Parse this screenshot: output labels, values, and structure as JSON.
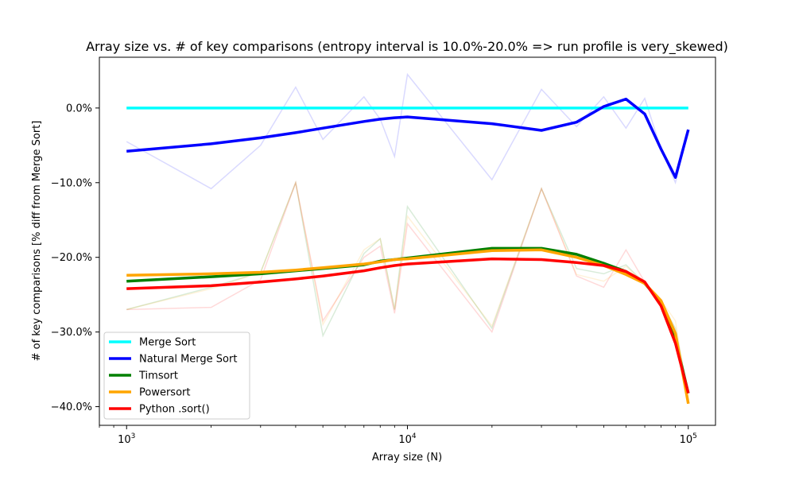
{
  "chart_data": {
    "type": "line",
    "title": "Array size vs. # of key comparisons (entropy interval is 10.0%-20.0% => run profile is very_skewed)",
    "xlabel": "Array size (N)",
    "ylabel": "# of key comparisons [% diff from Merge Sort]",
    "xscale": "log",
    "xlim": [
      800,
      125000
    ],
    "ylim": [
      -42.5,
      6.8
    ],
    "x_ticks": [
      {
        "value": 1000,
        "base": "10",
        "exp": "3"
      },
      {
        "value": 10000,
        "base": "10",
        "exp": "4"
      },
      {
        "value": 100000,
        "base": "10",
        "exp": "5"
      }
    ],
    "y_ticks": [
      {
        "value": 0,
        "label": "0.0%"
      },
      {
        "value": -10,
        "label": "−10.0%"
      },
      {
        "value": -20,
        "label": "−20.0%"
      },
      {
        "value": -30,
        "label": "−30.0%"
      },
      {
        "value": -40,
        "label": "−40.0%"
      }
    ],
    "grid": false,
    "legend_position": "lower-left",
    "x": [
      1000,
      2000,
      3000,
      4000,
      5000,
      7000,
      8000,
      9000,
      10000,
      20000,
      30000,
      40000,
      50000,
      60000,
      70000,
      80000,
      90000,
      100000
    ],
    "series": [
      {
        "name": "Merge Sort",
        "color": "#00ffff",
        "values": [
          0,
          0,
          0,
          0,
          0,
          0,
          0,
          0,
          0,
          0,
          0,
          0,
          0,
          0,
          0,
          0,
          0,
          0
        ],
        "raw": [
          0,
          0,
          0,
          0,
          0,
          0,
          0,
          0,
          0,
          0,
          0,
          0,
          0,
          0,
          0,
          0,
          0,
          0
        ]
      },
      {
        "name": "Natural Merge Sort",
        "color": "#0000ff",
        "values": [
          -5.8,
          -4.8,
          -4.0,
          -3.3,
          -2.7,
          -1.8,
          -1.5,
          -1.3,
          -1.2,
          -2.1,
          -3.0,
          -1.9,
          0.2,
          1.2,
          -0.8,
          -5.5,
          -9.3,
          -2.9
        ],
        "raw": [
          -4.5,
          -10.8,
          -5.0,
          2.8,
          -4.2,
          1.5,
          -1.5,
          -6.5,
          4.5,
          -9.6,
          2.5,
          -2.5,
          1.5,
          -2.7,
          1.3,
          -5.5,
          -10.0,
          -2.9
        ]
      },
      {
        "name": "Timsort",
        "color": "#008000",
        "values": [
          -23.2,
          -22.6,
          -22.2,
          -21.8,
          -21.5,
          -21.0,
          -20.5,
          -20.3,
          -20.1,
          -18.8,
          -18.8,
          -19.6,
          -20.8,
          -21.9,
          -23.5,
          -26.0,
          -31.0,
          -38.2
        ],
        "raw": [
          -27.0,
          -24.0,
          -22.0,
          -10.0,
          -30.5,
          -19.5,
          -17.5,
          -27.0,
          -13.2,
          -29.5,
          -10.8,
          -21.5,
          -22.2,
          -21.0,
          -23.5,
          -26.0,
          -29.5,
          -38.2
        ]
      },
      {
        "name": "Powersort",
        "color": "#ffa500",
        "values": [
          -22.4,
          -22.2,
          -22.0,
          -21.7,
          -21.4,
          -20.9,
          -20.6,
          -20.3,
          -20.2,
          -19.1,
          -19.0,
          -20.0,
          -21.1,
          -22.3,
          -23.5,
          -25.8,
          -30.2,
          -39.6
        ],
        "raw": [
          -27.0,
          -24.2,
          -22.0,
          -10.0,
          -29.0,
          -19.0,
          -17.5,
          -27.0,
          -14.5,
          -29.2,
          -10.8,
          -22.3,
          -23.2,
          -21.2,
          -23.5,
          -25.8,
          -28.5,
          -39.6
        ]
      },
      {
        "name": "Python .sort()",
        "color": "#ff0000",
        "values": [
          -24.2,
          -23.8,
          -23.3,
          -22.9,
          -22.5,
          -21.8,
          -21.4,
          -21.1,
          -20.9,
          -20.2,
          -20.3,
          -20.7,
          -21.1,
          -21.9,
          -23.3,
          -26.5,
          -31.5,
          -38.2
        ],
        "raw": [
          -27.0,
          -26.7,
          -23.0,
          -10.0,
          -28.5,
          -20.0,
          -18.5,
          -27.5,
          -15.5,
          -30.0,
          -10.8,
          -22.5,
          -24.0,
          -19.0,
          -23.3,
          -26.5,
          -31.5,
          -38.2
        ]
      }
    ]
  }
}
